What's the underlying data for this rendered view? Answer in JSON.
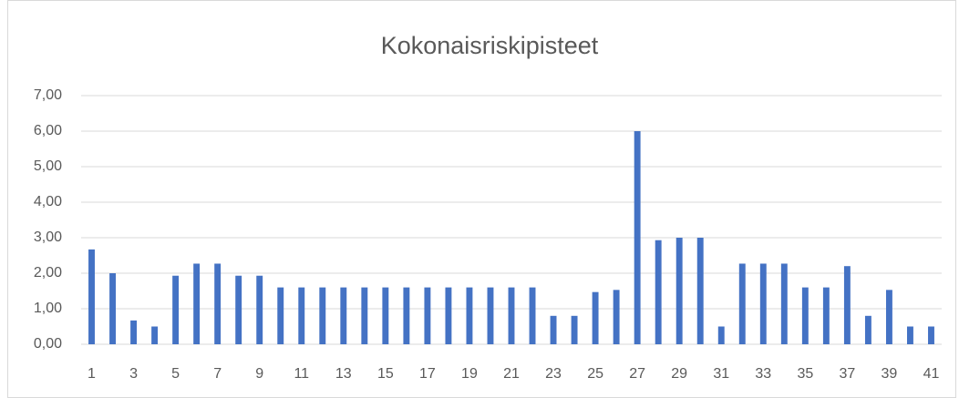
{
  "chart_data": {
    "type": "bar",
    "title": "Kokonaisriskipisteet",
    "categories": [
      "1",
      null,
      "3",
      null,
      "5",
      null,
      "7",
      null,
      "9",
      null,
      "11",
      null,
      "13",
      null,
      "15",
      null,
      "17",
      null,
      "19",
      null,
      "21",
      null,
      "23",
      null,
      "25",
      null,
      "27",
      null,
      "29",
      null,
      "31",
      null,
      "33",
      null,
      "35",
      null,
      "37",
      null,
      "39",
      null,
      "41"
    ],
    "values": [
      2.67,
      2.0,
      0.67,
      0.5,
      1.93,
      2.27,
      2.27,
      1.93,
      1.93,
      1.6,
      1.6,
      1.6,
      1.6,
      1.6,
      1.6,
      1.6,
      1.6,
      1.6,
      1.6,
      1.6,
      1.6,
      1.6,
      0.8,
      0.8,
      1.47,
      1.53,
      6.0,
      2.93,
      3.0,
      3.0,
      0.5,
      2.27,
      2.27,
      2.27,
      1.6,
      1.6,
      2.2,
      0.8,
      1.53,
      0.5,
      0.5
    ],
    "color": "#4472c4",
    "ylim": [
      0,
      7
    ],
    "yticks": [
      {
        "value": 0,
        "label": "0,00"
      },
      {
        "value": 1,
        "label": "1,00"
      },
      {
        "value": 2,
        "label": "2,00"
      },
      {
        "value": 3,
        "label": "3,00"
      },
      {
        "value": 4,
        "label": "4,00"
      },
      {
        "value": 5,
        "label": "5,00"
      },
      {
        "value": 6,
        "label": "6,00"
      },
      {
        "value": 7,
        "label": "7,00"
      }
    ],
    "grid": true
  }
}
